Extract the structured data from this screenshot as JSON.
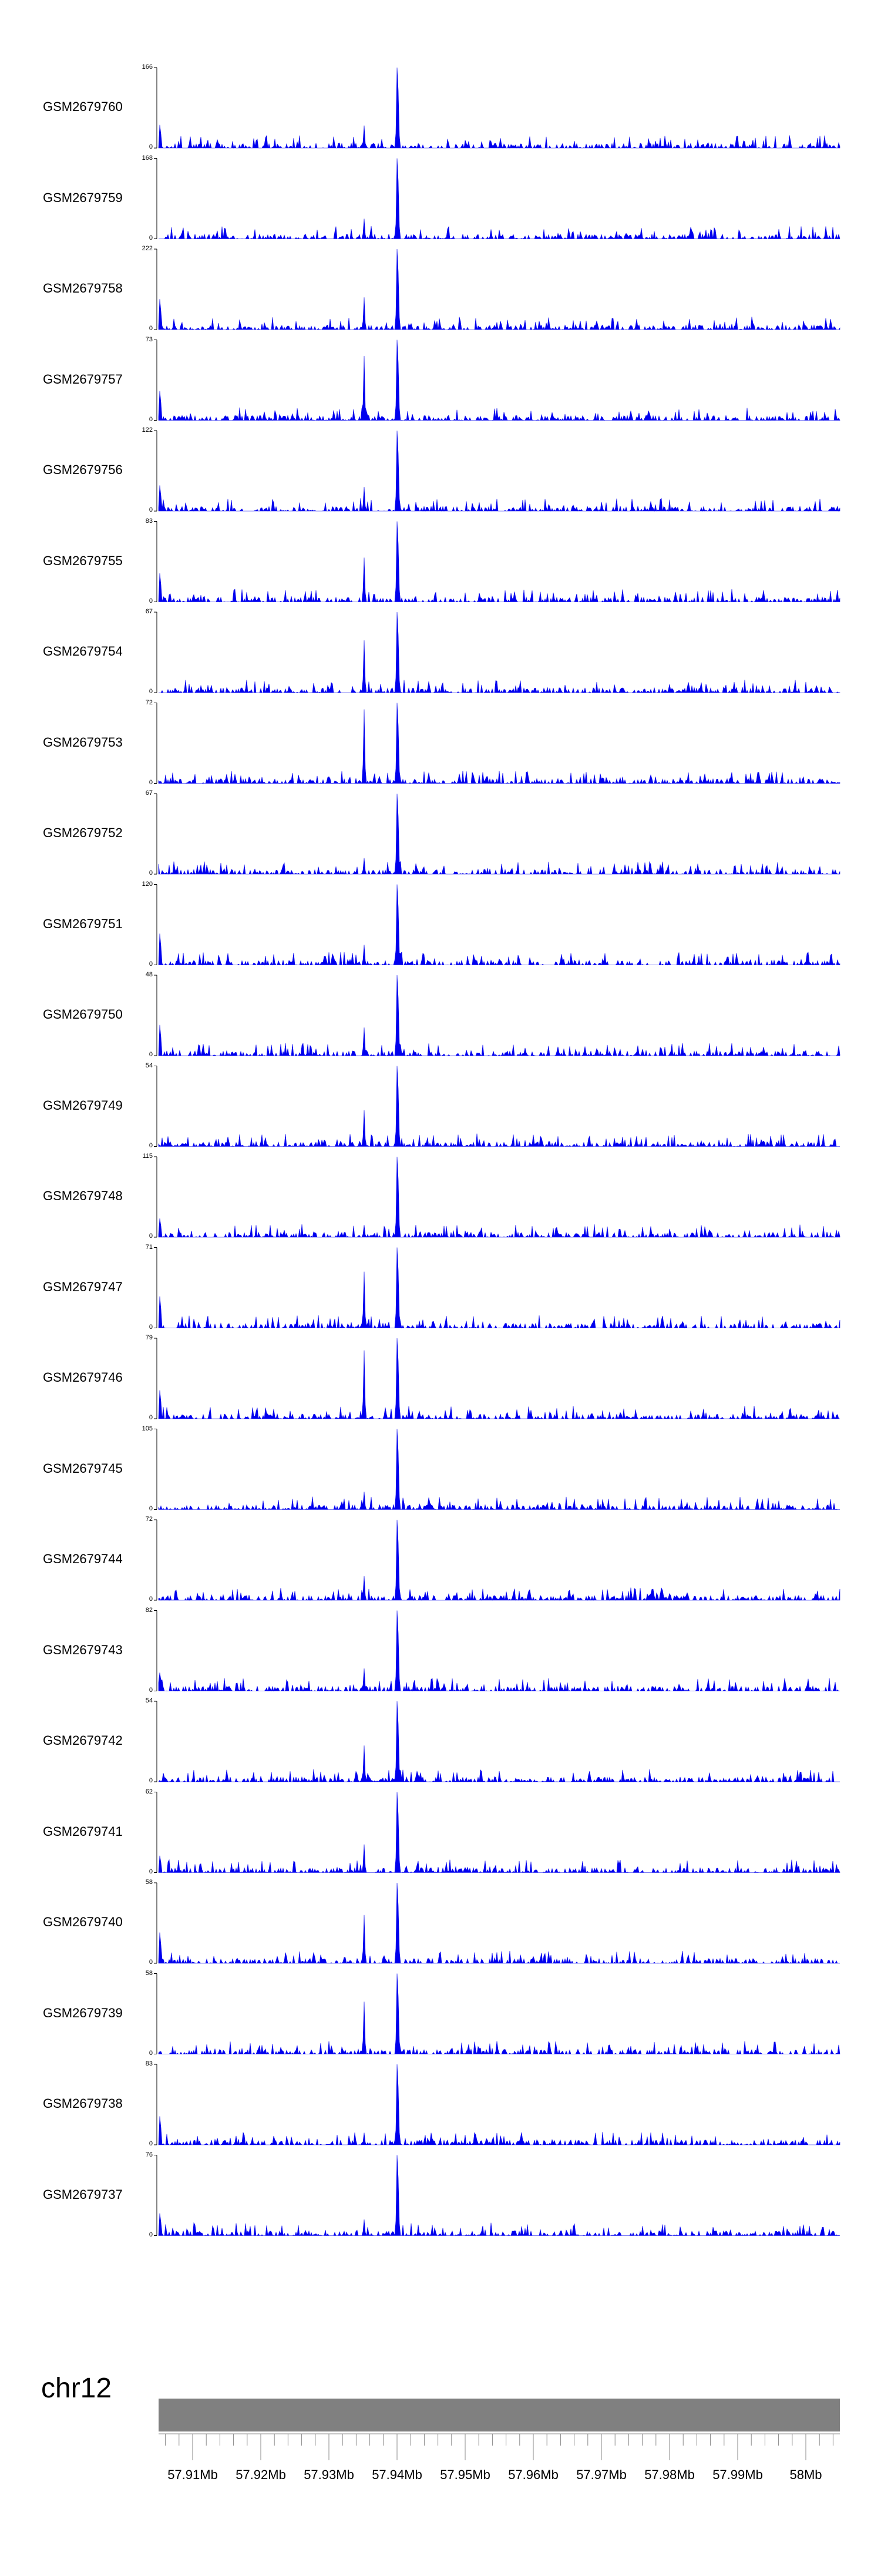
{
  "chart_data": {
    "type": "area",
    "chromosome": "chr12",
    "x_unit": "bp",
    "xlim": [
      57905000,
      58005000
    ],
    "x_ticks": [
      57910000,
      57920000,
      57930000,
      57940000,
      57950000,
      57960000,
      57970000,
      57980000,
      57990000,
      58000000
    ],
    "x_tick_labels": [
      "57.91Mb",
      "57.92Mb",
      "57.93Mb",
      "57.94Mb",
      "57.95Mb",
      "57.96Mb",
      "57.97Mb",
      "57.98Mb",
      "57.99Mb",
      "58Mb"
    ],
    "series_color": "#0000ee",
    "chrom_color": "#808080",
    "peaks": [
      {
        "x": 57939980,
        "label": "main peak"
      },
      {
        "x": 57935200,
        "label": "secondary peak"
      }
    ],
    "tracks": [
      {
        "name": "GSM2679760",
        "ymax": 166,
        "main": 1.0,
        "secondary": 0.28,
        "seed": 1
      },
      {
        "name": "GSM2679759",
        "ymax": 168,
        "main": 1.0,
        "secondary": 0.25,
        "seed": 2
      },
      {
        "name": "GSM2679758",
        "ymax": 222,
        "main": 1.0,
        "secondary": 0.4,
        "seed": 3
      },
      {
        "name": "GSM2679757",
        "ymax": 73,
        "main": 1.0,
        "secondary": 0.8,
        "seed": 4
      },
      {
        "name": "GSM2679756",
        "ymax": 122,
        "main": 1.0,
        "secondary": 0.3,
        "seed": 5
      },
      {
        "name": "GSM2679755",
        "ymax": 83,
        "main": 1.0,
        "secondary": 0.55,
        "seed": 6
      },
      {
        "name": "GSM2679754",
        "ymax": 67,
        "main": 1.0,
        "secondary": 0.65,
        "seed": 7
      },
      {
        "name": "GSM2679753",
        "ymax": 72,
        "main": 1.0,
        "secondary": 0.92,
        "seed": 8
      },
      {
        "name": "GSM2679752",
        "ymax": 67,
        "main": 1.0,
        "secondary": 0.2,
        "seed": 9
      },
      {
        "name": "GSM2679751",
        "ymax": 120,
        "main": 1.0,
        "secondary": 0.25,
        "seed": 10
      },
      {
        "name": "GSM2679750",
        "ymax": 48,
        "main": 1.0,
        "secondary": 0.35,
        "seed": 11
      },
      {
        "name": "GSM2679749",
        "ymax": 54,
        "main": 1.0,
        "secondary": 0.45,
        "seed": 12
      },
      {
        "name": "GSM2679748",
        "ymax": 115,
        "main": 1.0,
        "secondary": 0.15,
        "seed": 13
      },
      {
        "name": "GSM2679747",
        "ymax": 71,
        "main": 1.0,
        "secondary": 0.7,
        "seed": 14
      },
      {
        "name": "GSM2679746",
        "ymax": 79,
        "main": 1.0,
        "secondary": 0.85,
        "seed": 15
      },
      {
        "name": "GSM2679745",
        "ymax": 105,
        "main": 1.0,
        "secondary": 0.22,
        "seed": 16
      },
      {
        "name": "GSM2679744",
        "ymax": 72,
        "main": 1.0,
        "secondary": 0.3,
        "seed": 17
      },
      {
        "name": "GSM2679743",
        "ymax": 82,
        "main": 1.0,
        "secondary": 0.28,
        "seed": 18
      },
      {
        "name": "GSM2679742",
        "ymax": 54,
        "main": 1.0,
        "secondary": 0.45,
        "seed": 19
      },
      {
        "name": "GSM2679741",
        "ymax": 62,
        "main": 1.0,
        "secondary": 0.35,
        "seed": 20
      },
      {
        "name": "GSM2679740",
        "ymax": 58,
        "main": 1.0,
        "secondary": 0.6,
        "seed": 21
      },
      {
        "name": "GSM2679739",
        "ymax": 58,
        "main": 1.0,
        "secondary": 0.65,
        "seed": 22
      },
      {
        "name": "GSM2679738",
        "ymax": 83,
        "main": 1.0,
        "secondary": 0.15,
        "seed": 23
      },
      {
        "name": "GSM2679737",
        "ymax": 76,
        "main": 1.0,
        "secondary": 0.2,
        "seed": 24
      }
    ]
  }
}
